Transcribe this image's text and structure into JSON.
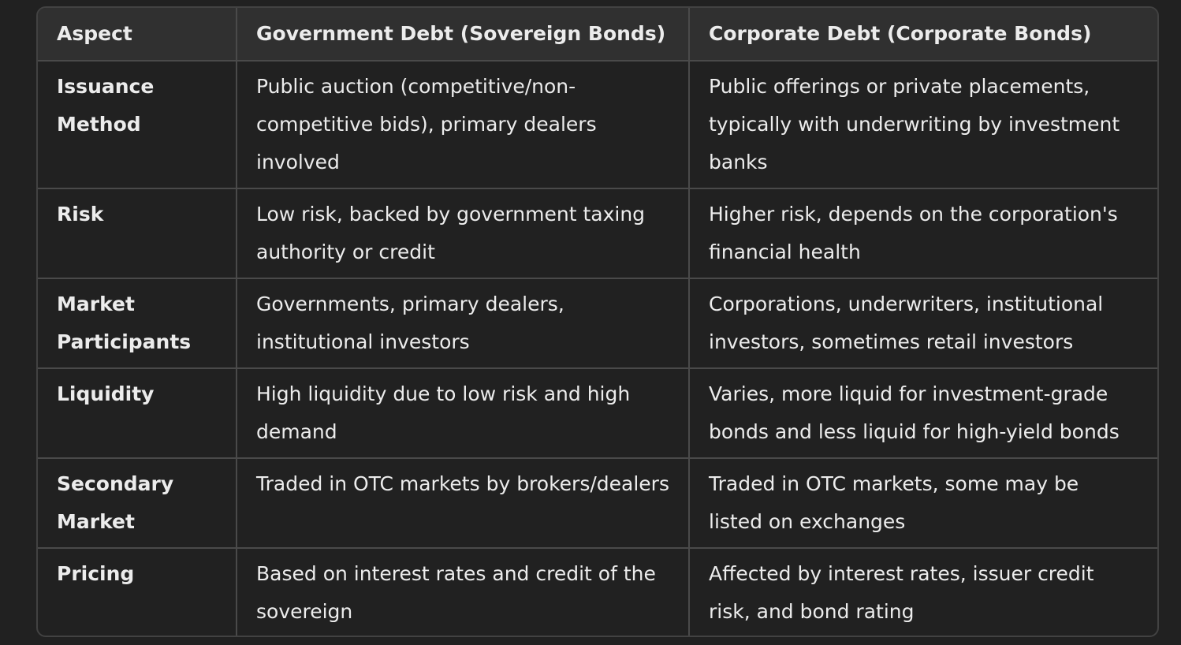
{
  "table": {
    "headers": [
      "Aspect",
      "Government Debt (Sovereign Bonds)",
      "Corporate Debt (Corporate Bonds)"
    ],
    "rows": [
      [
        "Issuance Method",
        "Public auction (competitive/non-competitive bids), primary dealers involved",
        "Public offerings or private placements, typically with underwriting by investment banks"
      ],
      [
        "Risk",
        "Low risk, backed by government taxing authority or credit",
        "Higher risk, depends on the corporation's financial health"
      ],
      [
        "Market Participants",
        "Governments, primary dealers, institutional investors",
        "Corporations, underwriters, institutional investors, sometimes retail investors"
      ],
      [
        "Liquidity",
        "High liquidity due to low risk and high demand",
        "Varies, more liquid for investment-grade bonds and less liquid for high-yield bonds"
      ],
      [
        "Secondary Market",
        "Traded in OTC markets by brokers/dealers",
        "Traded in OTC markets, some may be listed on exchanges"
      ],
      [
        "Pricing",
        "Based on interest rates and credit of the sovereign",
        "Affected by interest rates, issuer credit risk, and bond rating"
      ]
    ]
  }
}
